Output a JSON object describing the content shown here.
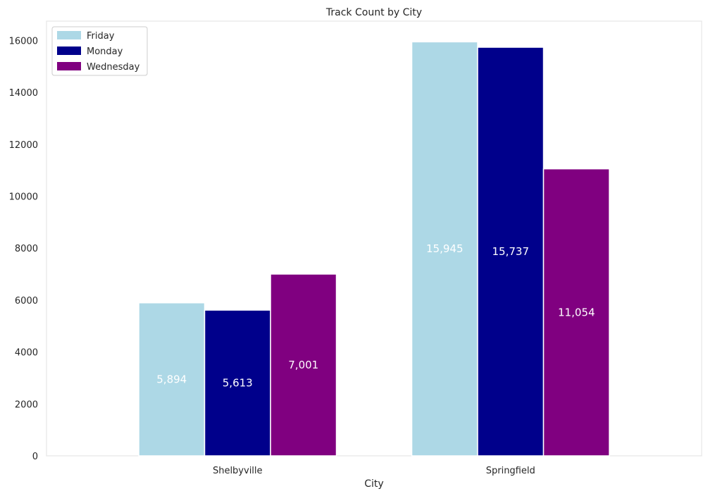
{
  "chart_data": {
    "type": "bar",
    "title": "Track Count by City",
    "xlabel": "City",
    "ylabel": "",
    "categories": [
      "Shelbyville",
      "Springfield"
    ],
    "series": [
      {
        "name": "Friday",
        "values": [
          5894,
          15945
        ],
        "labels": [
          "5,894",
          "15,945"
        ],
        "color": "#add8e6",
        "label_color": "#ffffff"
      },
      {
        "name": "Monday",
        "values": [
          5613,
          15737
        ],
        "labels": [
          "5,613",
          "15,737"
        ],
        "color": "#00008b",
        "label_color": "#ffffff"
      },
      {
        "name": "Wednesday",
        "values": [
          7001,
          11054
        ],
        "labels": [
          "7,001",
          "11,054"
        ],
        "color": "#800080",
        "label_color": "#ffffff"
      }
    ],
    "ylim": [
      0,
      16742
    ],
    "yticks": [
      0,
      2000,
      4000,
      6000,
      8000,
      10000,
      12000,
      14000,
      16000
    ],
    "grid": false,
    "legend": "top-left"
  }
}
